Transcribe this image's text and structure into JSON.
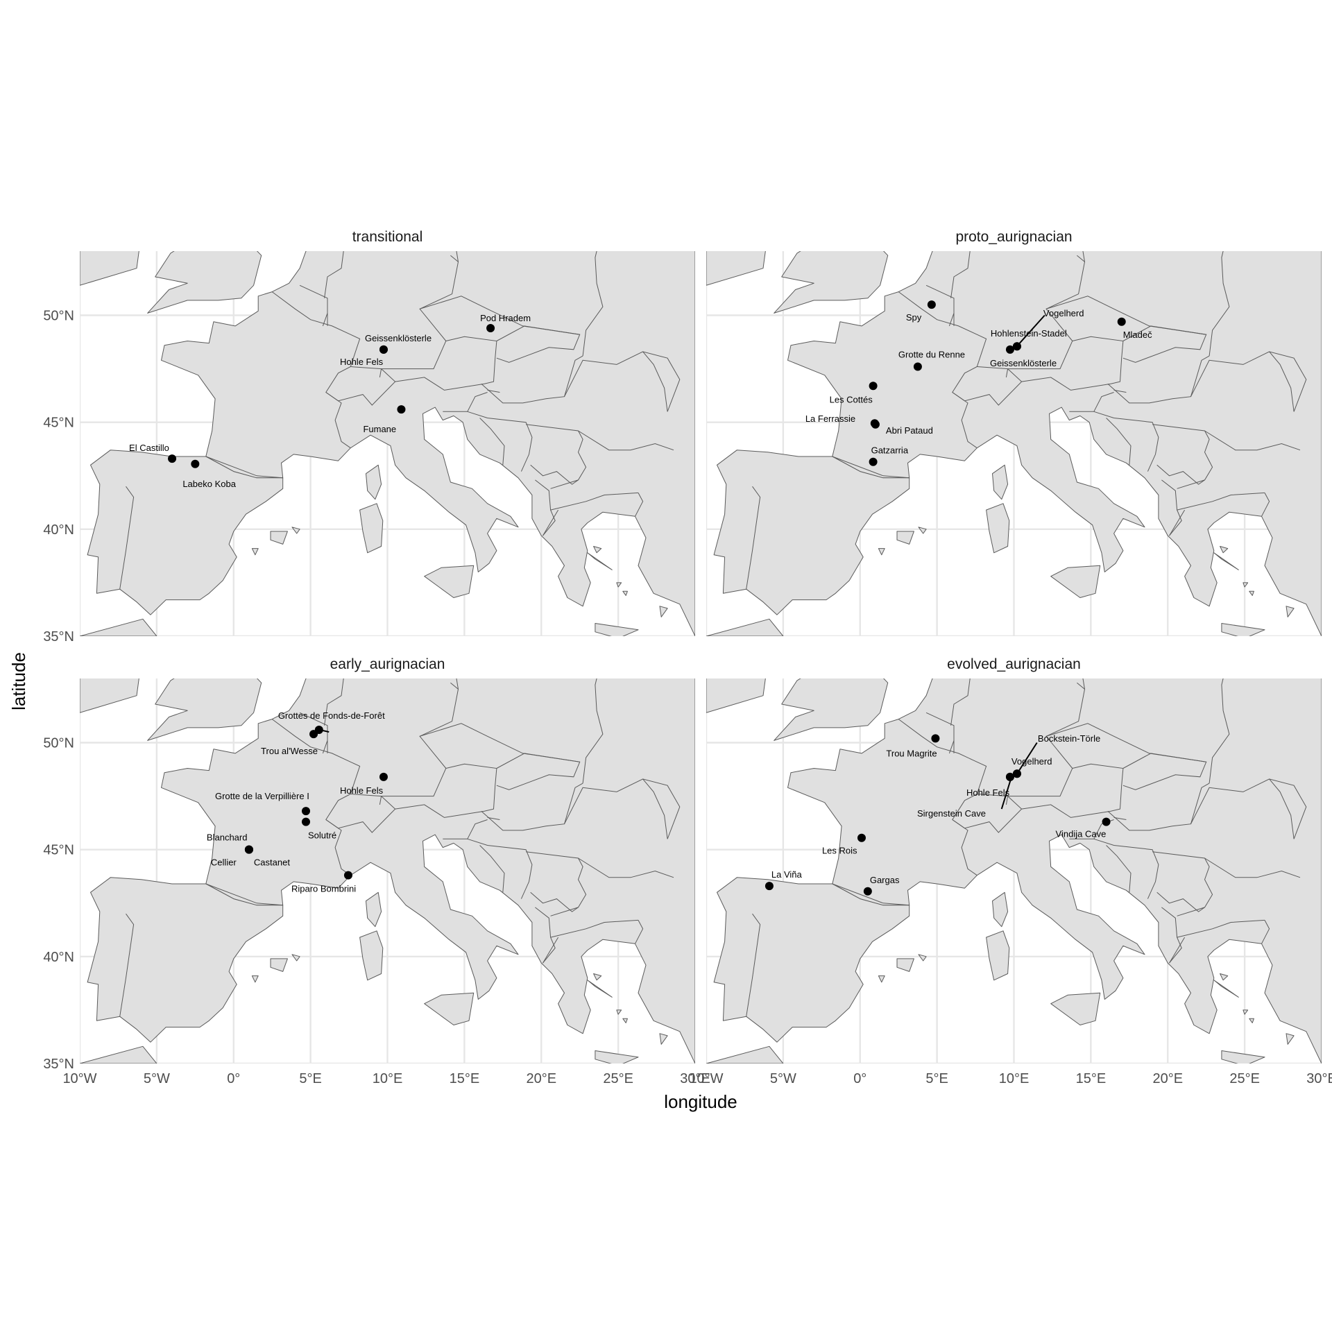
{
  "axes": {
    "xlabel": "longitude",
    "ylabel": "latitude",
    "x_ticks": [
      {
        "value": -10,
        "label": "10°W"
      },
      {
        "value": -5,
        "label": "5°W"
      },
      {
        "value": 0,
        "label": "0°"
      },
      {
        "value": 5,
        "label": "5°E"
      },
      {
        "value": 10,
        "label": "10°E"
      },
      {
        "value": 15,
        "label": "15°E"
      },
      {
        "value": 20,
        "label": "20°E"
      },
      {
        "value": 25,
        "label": "25°E"
      },
      {
        "value": 30,
        "label": "30°E"
      }
    ],
    "y_ticks": [
      {
        "value": 35,
        "label": "35°N"
      },
      {
        "value": 40,
        "label": "40°N"
      },
      {
        "value": 45,
        "label": "45°N"
      },
      {
        "value": 50,
        "label": "50°N"
      }
    ]
  },
  "chart_data": {
    "type": "scatter",
    "map_extent": {
      "lon": [
        -10,
        30
      ],
      "lat": [
        35,
        53
      ]
    },
    "grid": true,
    "colors": {
      "land": "#e0e0e0",
      "border": "#5a5a5a",
      "grid": "#e6e6e6",
      "point": "#000000"
    },
    "facets": [
      {
        "name": "transitional",
        "sites": [
          {
            "name": "Pod Hradem",
            "lon": 16.7,
            "lat": 49.4
          },
          {
            "name": "Geissenklösterle",
            "lon": 9.75,
            "lat": 48.4
          },
          {
            "name": "Hohle Fels",
            "lon": 9.75,
            "lat": 48.4
          },
          {
            "name": "Fumane",
            "lon": 10.9,
            "lat": 45.6
          },
          {
            "name": "El Castillo",
            "lon": -4.0,
            "lat": 43.3
          },
          {
            "name": "Labeko Koba",
            "lon": -2.5,
            "lat": 43.05
          }
        ]
      },
      {
        "name": "proto_aurignacian",
        "sites": [
          {
            "name": "Spy",
            "lon": 4.65,
            "lat": 50.5
          },
          {
            "name": "Vogelherd",
            "lon": 10.2,
            "lat": 48.55
          },
          {
            "name": "Mladeč",
            "lon": 17.0,
            "lat": 49.7
          },
          {
            "name": "Hohlenstein-Stadel",
            "lon": 10.2,
            "lat": 48.55
          },
          {
            "name": "Geissenklösterle",
            "lon": 9.75,
            "lat": 48.4
          },
          {
            "name": "Grotte du Renne",
            "lon": 3.75,
            "lat": 47.6
          },
          {
            "name": "Les Cottés",
            "lon": 0.85,
            "lat": 46.7
          },
          {
            "name": "La Ferrassie",
            "lon": 0.95,
            "lat": 44.95
          },
          {
            "name": "Abri Pataud",
            "lon": 1.0,
            "lat": 44.9
          },
          {
            "name": "Gatzarria",
            "lon": 0.85,
            "lat": 43.15
          }
        ]
      },
      {
        "name": "early_aurignacian",
        "sites": [
          {
            "name": "Grottes de Fonds-de-Forêt",
            "lon": 5.55,
            "lat": 50.6
          },
          {
            "name": "Trou al'Wesse",
            "lon": 5.2,
            "lat": 50.4
          },
          {
            "name": "Hohle Fels",
            "lon": 9.75,
            "lat": 48.4
          },
          {
            "name": "Grotte de la Verpillière I",
            "lon": 4.7,
            "lat": 46.8
          },
          {
            "name": "Solutré",
            "lon": 4.7,
            "lat": 46.3
          },
          {
            "name": "Blanchard",
            "lon": 1.0,
            "lat": 45.0
          },
          {
            "name": "Cellier",
            "lon": 1.0,
            "lat": 45.0
          },
          {
            "name": "Castanet",
            "lon": 1.0,
            "lat": 45.0
          },
          {
            "name": "Riparo Bombrini",
            "lon": 7.45,
            "lat": 43.8
          }
        ]
      },
      {
        "name": "evolved_aurignacian",
        "sites": [
          {
            "name": "Bockstein-Törle",
            "lon": 10.2,
            "lat": 48.55
          },
          {
            "name": "Trou Magrite",
            "lon": 4.9,
            "lat": 50.2
          },
          {
            "name": "Vogelherd",
            "lon": 10.2,
            "lat": 48.55
          },
          {
            "name": "Hohle Fels",
            "lon": 9.75,
            "lat": 48.4
          },
          {
            "name": "Sirgenstein Cave",
            "lon": 9.75,
            "lat": 48.4
          },
          {
            "name": "Vindija Cave",
            "lon": 16.0,
            "lat": 46.3
          },
          {
            "name": "Les Rois",
            "lon": 0.1,
            "lat": 45.55
          },
          {
            "name": "La Viña",
            "lon": -5.9,
            "lat": 43.3
          },
          {
            "name": "Gargas",
            "lon": 0.5,
            "lat": 43.05
          }
        ]
      }
    ]
  }
}
